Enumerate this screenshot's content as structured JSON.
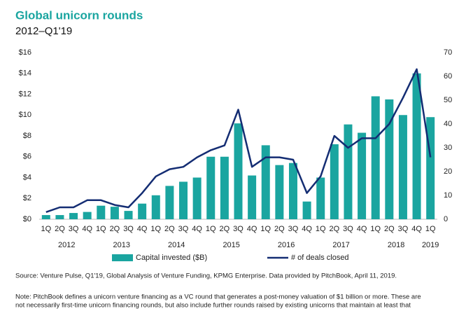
{
  "chart_data": {
    "type": "bar_line",
    "title": "Global unicorn rounds",
    "subtitle": "2012–Q1'19",
    "categories": [
      "1Q",
      "2Q",
      "3Q",
      "4Q",
      "1Q",
      "2Q",
      "3Q",
      "4Q",
      "1Q",
      "2Q",
      "3Q",
      "4Q",
      "1Q",
      "2Q",
      "3Q",
      "4Q",
      "1Q",
      "2Q",
      "3Q",
      "4Q",
      "1Q",
      "2Q",
      "3Q",
      "4Q",
      "1Q",
      "2Q",
      "3Q",
      "4Q",
      "1Q"
    ],
    "x_groups": [
      "2012",
      "2013",
      "2014",
      "2015",
      "2016",
      "2017",
      "2018",
      "2019"
    ],
    "series": [
      {
        "name": "Capital invested ($B)",
        "kind": "bar",
        "color": "#1aa5a0",
        "values": [
          0.4,
          0.4,
          0.6,
          0.7,
          1.3,
          1.2,
          0.8,
          1.5,
          2.3,
          3.2,
          3.6,
          4.0,
          6.0,
          6.0,
          9.2,
          4.2,
          7.1,
          5.2,
          5.4,
          1.7,
          4.0,
          7.2,
          9.1,
          8.3,
          11.8,
          11.5,
          10.0,
          14.0,
          9.8
        ]
      },
      {
        "name": "# of deals closed",
        "kind": "line",
        "axis": "y2",
        "color": "#142d73",
        "values": [
          3,
          5,
          5,
          8,
          8,
          6,
          5,
          11,
          18,
          21,
          22,
          26,
          29,
          31,
          46,
          22,
          26,
          26,
          25,
          11,
          18,
          35,
          30,
          34,
          34,
          40,
          51,
          63,
          26
        ]
      }
    ],
    "ylim": [
      0,
      16
    ],
    "yticks": [
      {
        "value": 0,
        "label": "$0"
      },
      {
        "value": 2,
        "label": "$2"
      },
      {
        "value": 4,
        "label": "$4"
      },
      {
        "value": 6,
        "label": "$6"
      },
      {
        "value": 8,
        "label": "$8"
      },
      {
        "value": 10,
        "label": "$10"
      },
      {
        "value": 12,
        "label": "$12"
      },
      {
        "value": 14,
        "label": "$14"
      },
      {
        "value": 16,
        "label": "$16"
      }
    ],
    "y2lim": [
      0,
      70
    ],
    "y2ticks": [
      0,
      10,
      20,
      30,
      40,
      50,
      60,
      70
    ],
    "source": "Source: Venture Pulse, Q1'19, Global Analysis of Venture Funding, KPMG Enterprise. Data provided by PitchBook, April 11, 2019.",
    "note": [
      "Note: PitchBook defines a unicorn venture financing as a VC round that generates a post-money valuation of $1 billion or more. These are",
      "not necessarily first-time unicorn financing rounds, but also include further rounds raised by existing unicorns that maintain at least that"
    ]
  }
}
